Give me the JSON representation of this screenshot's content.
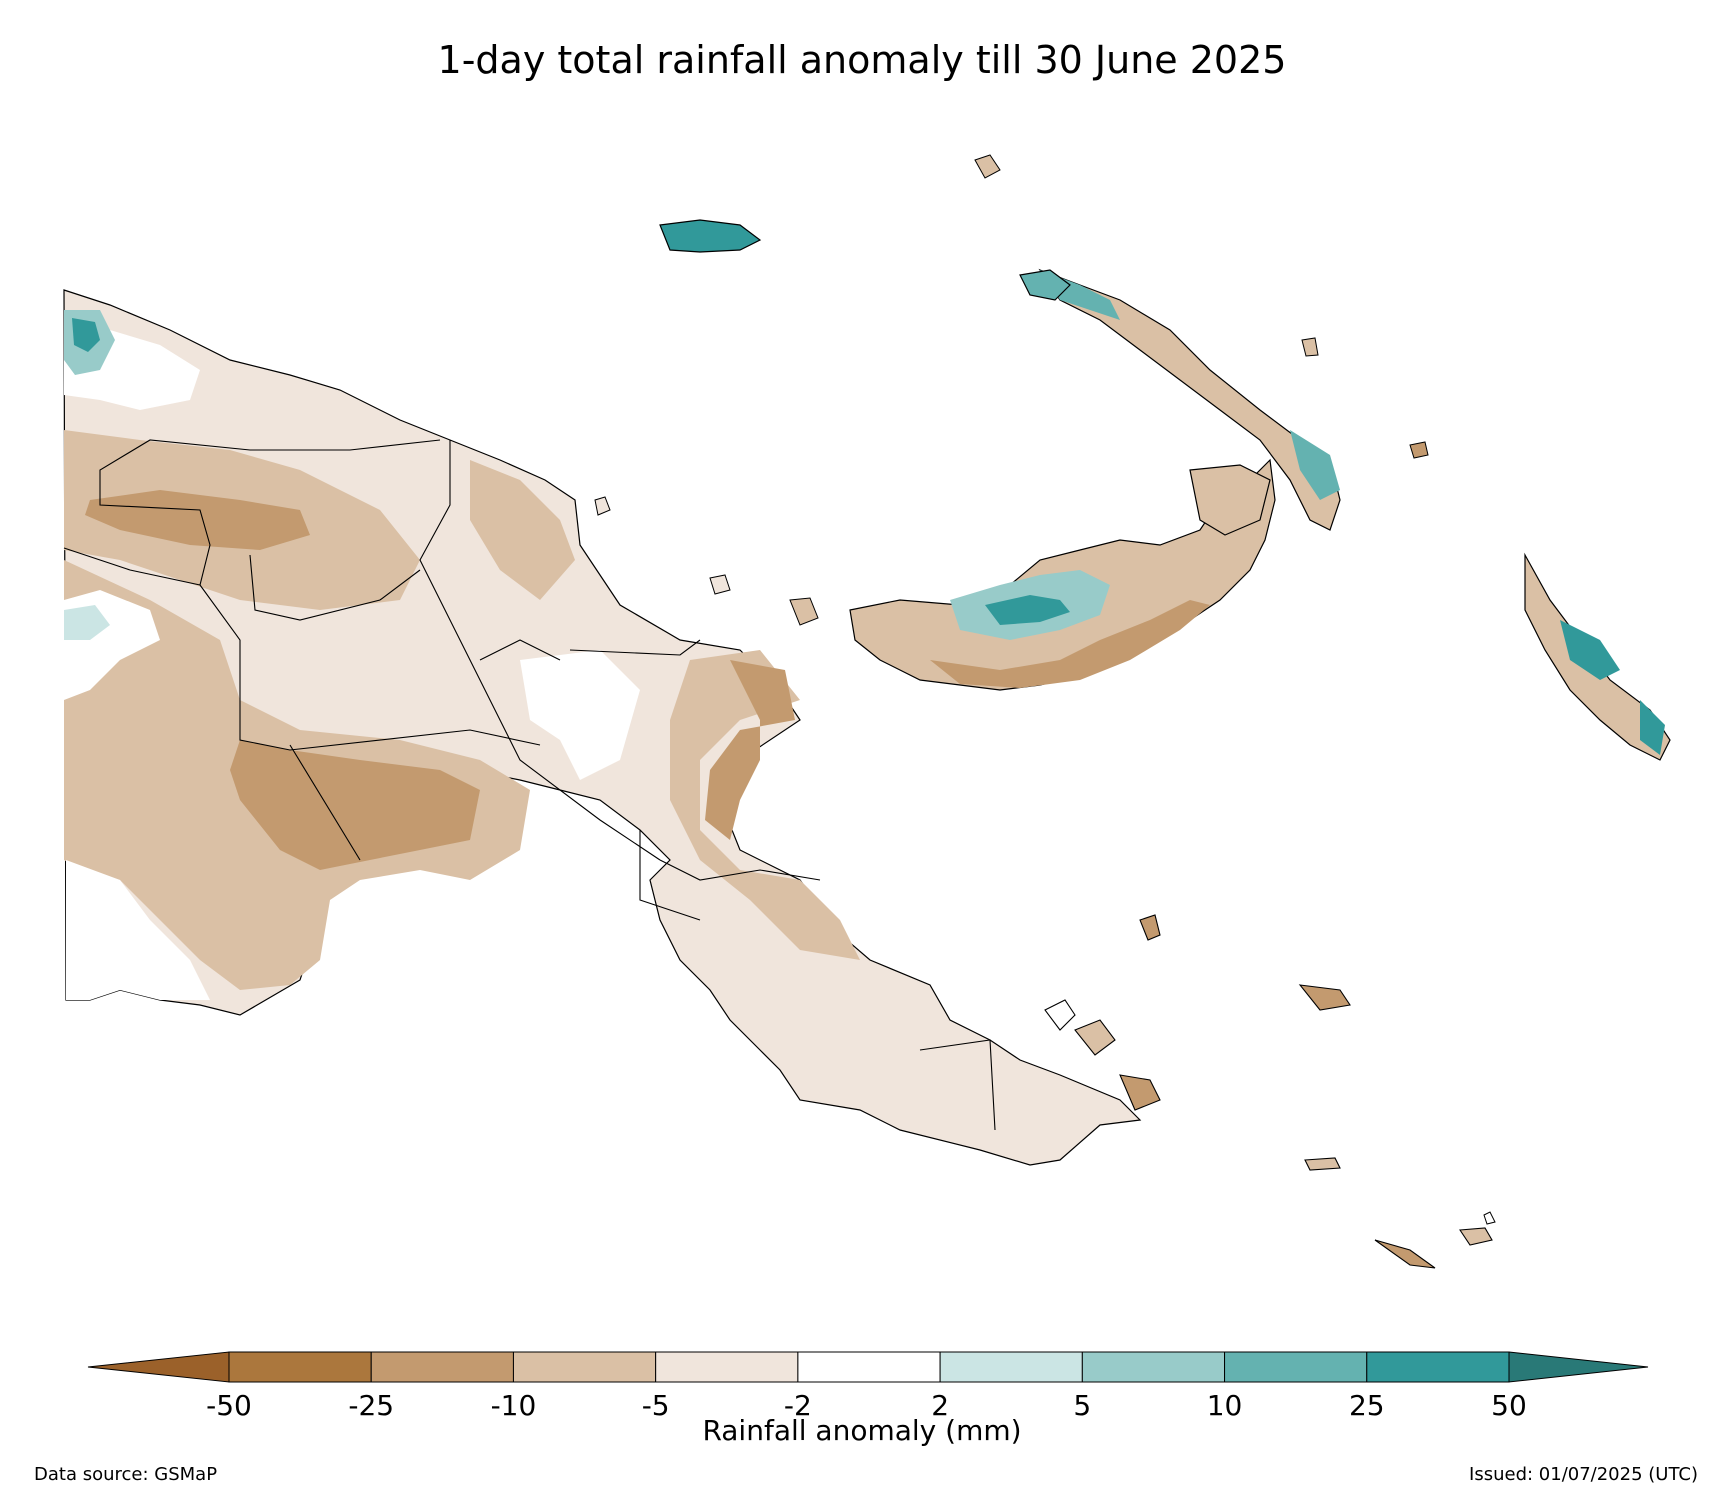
{
  "title": "1-day total rainfall anomaly till 30 June 2025",
  "colorbar": {
    "label": "Rainfall anomaly (mm)",
    "ticks": [
      "-50",
      "-25",
      "-10",
      "-5",
      "-2",
      "2",
      "5",
      "10",
      "25",
      "50"
    ],
    "colors": [
      "#9b612a",
      "#ab773d",
      "#c39a6f",
      "#dac0a5",
      "#f0e5dc",
      "#ffffff",
      "#cbe5e4",
      "#98cbc9",
      "#64b2b0",
      "#31999a",
      "#297977"
    ]
  },
  "source": "Data source: GSMaP",
  "issued": "Issued: 01/07/2025 (UTC)"
}
